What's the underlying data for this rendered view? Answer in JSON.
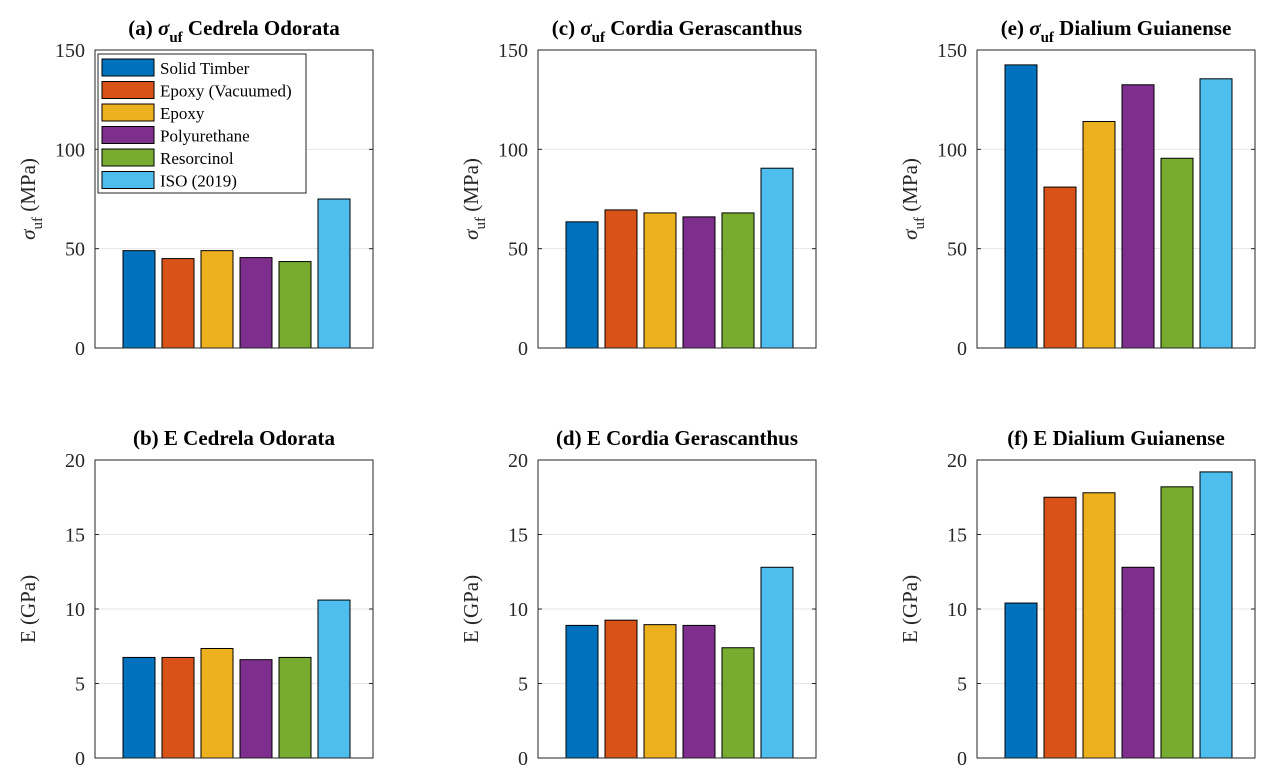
{
  "chart_data": [
    {
      "type": "bar",
      "panel": "a",
      "title_prefix": "(a)",
      "title_symbol": "σ",
      "title_sub": "uf",
      "title_rest": "Cedrela Odorata",
      "ylabel_symbol": "σ",
      "ylabel_sub": "uf",
      "ylabel_unit": "(MPa)",
      "ylim": [
        0,
        150
      ],
      "yticks": [
        "0",
        "50",
        "100",
        "150"
      ],
      "grid": true,
      "legend_position": "top-left",
      "categories": [
        "Solid Timber",
        "Epoxy (Vacuumed)",
        "Epoxy",
        "Polyurethane",
        "Resorcinol",
        "ISO (2019)"
      ],
      "values": [
        49,
        45,
        49,
        45.5,
        43.5,
        75
      ]
    },
    {
      "type": "bar",
      "panel": "b",
      "title": "(b) E Cedrela Odorata",
      "ylabel": "E  (GPa)",
      "ylim": [
        0,
        20
      ],
      "yticks": [
        "0",
        "5",
        "10",
        "15",
        "20"
      ],
      "grid": true,
      "categories": [
        "Solid Timber",
        "Epoxy (Vacuumed)",
        "Epoxy",
        "Polyurethane",
        "Resorcinol",
        "ISO (2019)"
      ],
      "values": [
        6.75,
        6.75,
        7.35,
        6.6,
        6.75,
        10.6
      ]
    },
    {
      "type": "bar",
      "panel": "c",
      "title_prefix": "(c)",
      "title_symbol": "σ",
      "title_sub": "uf",
      "title_rest": "Cordia Gerascanthus",
      "ylabel_symbol": "σ",
      "ylabel_sub": "uf",
      "ylabel_unit": "(MPa)",
      "ylim": [
        0,
        150
      ],
      "yticks": [
        "0",
        "50",
        "100",
        "150"
      ],
      "grid": true,
      "categories": [
        "Solid Timber",
        "Epoxy (Vacuumed)",
        "Epoxy",
        "Polyurethane",
        "Resorcinol",
        "ISO (2019)"
      ],
      "values": [
        63.5,
        69.5,
        68,
        66,
        68,
        90.5
      ]
    },
    {
      "type": "bar",
      "panel": "d",
      "title": "(d) E Cordia Gerascanthus",
      "ylabel": "E  (GPa)",
      "ylim": [
        0,
        20
      ],
      "yticks": [
        "0",
        "5",
        "10",
        "15",
        "20"
      ],
      "grid": true,
      "categories": [
        "Solid Timber",
        "Epoxy (Vacuumed)",
        "Epoxy",
        "Polyurethane",
        "Resorcinol",
        "ISO (2019)"
      ],
      "values": [
        8.9,
        9.25,
        8.95,
        8.9,
        7.4,
        12.8
      ]
    },
    {
      "type": "bar",
      "panel": "e",
      "title_prefix": "(e)",
      "title_symbol": "σ",
      "title_sub": "uf",
      "title_rest": "Dialium Guianense",
      "ylabel_symbol": "σ",
      "ylabel_sub": "uf",
      "ylabel_unit": "(MPa)",
      "ylim": [
        0,
        150
      ],
      "yticks": [
        "0",
        "50",
        "100",
        "150"
      ],
      "grid": true,
      "categories": [
        "Solid Timber",
        "Epoxy (Vacuumed)",
        "Epoxy",
        "Polyurethane",
        "Resorcinol",
        "ISO (2019)"
      ],
      "values": [
        142.5,
        81,
        114,
        132.5,
        95.5,
        135.5
      ]
    },
    {
      "type": "bar",
      "panel": "f",
      "title": "(f) E Dialium Guianense",
      "ylabel": "E  (GPa)",
      "ylim": [
        0,
        20
      ],
      "yticks": [
        "0",
        "5",
        "10",
        "15",
        "20"
      ],
      "grid": true,
      "categories": [
        "Solid Timber",
        "Epoxy (Vacuumed)",
        "Epoxy",
        "Polyurethane",
        "Resorcinol",
        "ISO (2019)"
      ],
      "values": [
        10.4,
        17.5,
        17.8,
        12.8,
        18.2,
        19.2
      ]
    }
  ],
  "legend": {
    "entries": [
      "Solid Timber",
      "Epoxy (Vacuumed)",
      "Epoxy",
      "Polyurethane",
      "Resorcinol",
      "ISO (2019)"
    ]
  },
  "colors": [
    "#0072BD",
    "#D95319",
    "#EDB120",
    "#7E2F8E",
    "#77AC30",
    "#4DBEEE"
  ]
}
